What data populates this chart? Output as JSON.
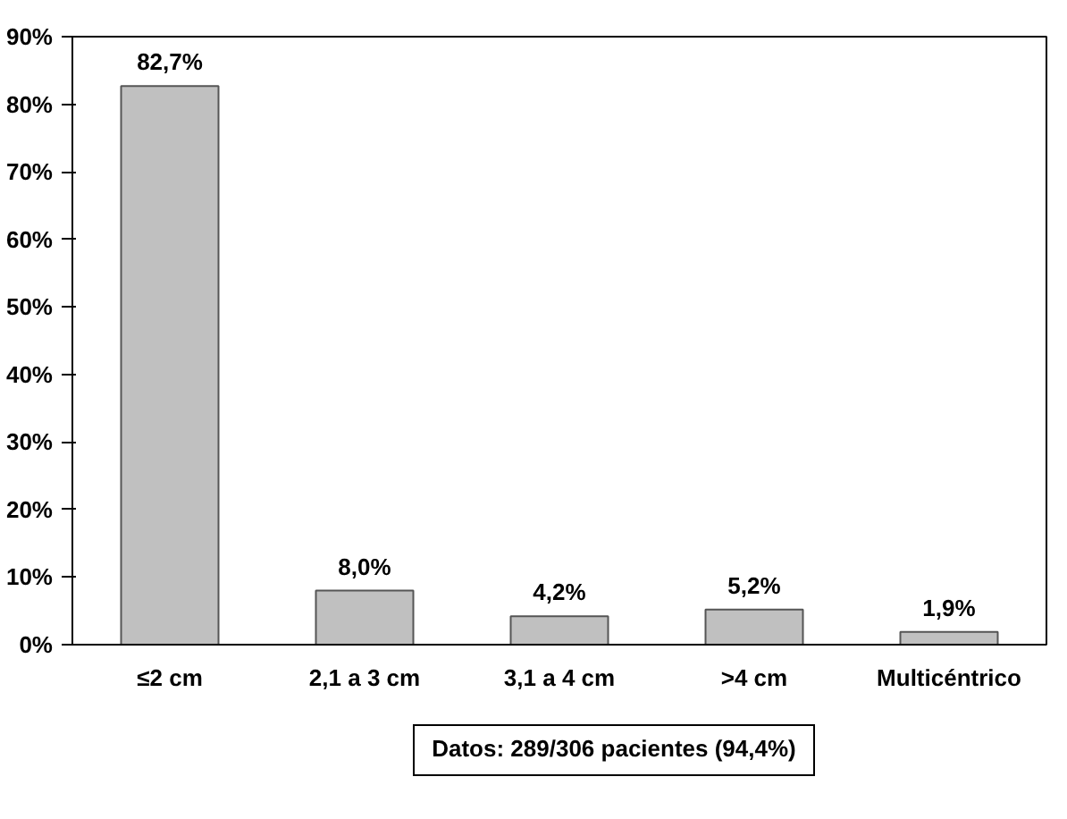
{
  "chart_data": {
    "type": "bar",
    "categories": [
      "≤2 cm",
      "2,1 a 3 cm",
      "3,1 a 4 cm",
      ">4 cm",
      "Multicéntrico"
    ],
    "values": [
      82.7,
      8.0,
      4.2,
      5.2,
      1.9
    ],
    "color": "#c0c0c0",
    "value_labels": [
      "82,7%",
      "8,0%",
      "4,2%",
      "5,2%",
      "1,9%"
    ],
    "ylim": [
      0,
      90
    ],
    "yticks": [
      {
        "value": 0,
        "label": "0%"
      },
      {
        "value": 10,
        "label": "10%"
      },
      {
        "value": 20,
        "label": "20%"
      },
      {
        "value": 30,
        "label": "30%"
      },
      {
        "value": 40,
        "label": "40%"
      },
      {
        "value": 50,
        "label": "50%"
      },
      {
        "value": 60,
        "label": "60%"
      },
      {
        "value": 70,
        "label": "70%"
      },
      {
        "value": 80,
        "label": "80%"
      },
      {
        "value": 90,
        "label": "90%"
      }
    ],
    "grid": false,
    "annotations": [
      "Datos: 289/306 pacientes (94,4%)"
    ]
  }
}
